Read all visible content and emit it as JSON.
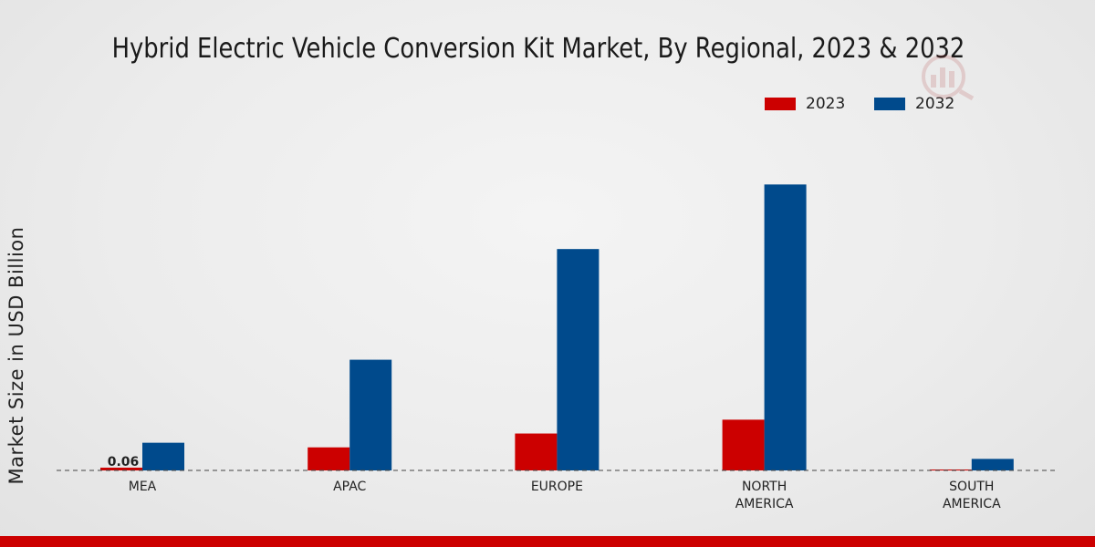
{
  "chart_data": {
    "type": "bar",
    "title": "Hybrid Electric Vehicle Conversion Kit Market, By Regional, 2023 & 2032",
    "ylabel": "Market Size in USD Billion",
    "xlabel": "",
    "categories": [
      "MEA",
      "APAC",
      "EUROPE",
      "NORTH AMERICA",
      "SOUTH AMERICA"
    ],
    "category_lines": [
      [
        "MEA"
      ],
      [
        "APAC"
      ],
      [
        "EUROPE"
      ],
      [
        "NORTH",
        "AMERICA"
      ],
      [
        "SOUTH",
        "AMERICA"
      ]
    ],
    "series": [
      {
        "name": "2023",
        "color": "#cc0000",
        "values": [
          0.06,
          0.5,
          0.8,
          1.1,
          0.02
        ]
      },
      {
        "name": "2032",
        "color": "#004a8c",
        "values": [
          0.6,
          2.4,
          4.8,
          6.2,
          0.25
        ]
      }
    ],
    "data_labels": [
      {
        "series": "2023",
        "category": "MEA",
        "text": "0.06"
      }
    ],
    "ylim": [
      0,
      10.2
    ],
    "grid": false,
    "legend_position": "top-right"
  }
}
